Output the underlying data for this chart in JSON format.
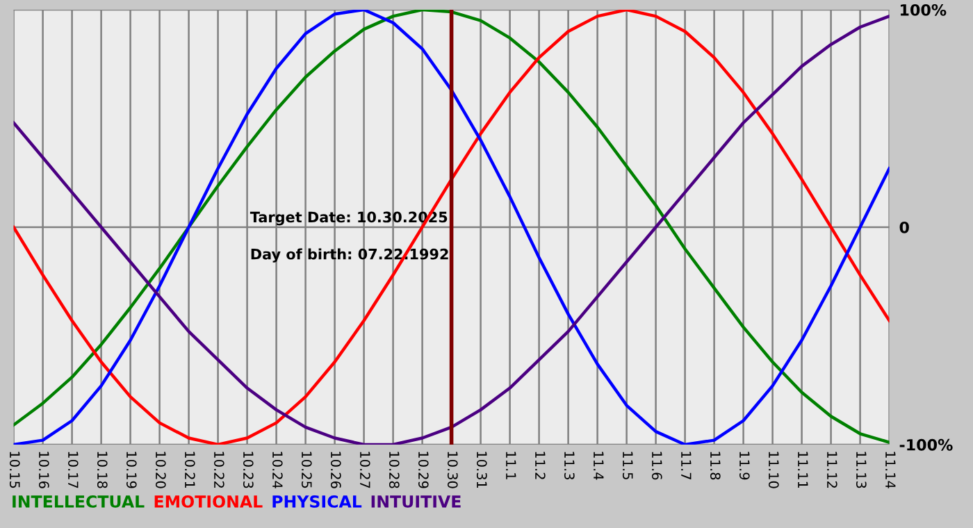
{
  "chart_data": {
    "type": "line",
    "categories": [
      "10.15",
      "10.16",
      "10.17",
      "10.18",
      "10.19",
      "10.20",
      "10.21",
      "10.22",
      "10.23",
      "10.24",
      "10.25",
      "10.26",
      "10.27",
      "10.28",
      "10.29",
      "10.30",
      "10.31",
      "11.1",
      "11.2",
      "11.3",
      "11.4",
      "11.5",
      "11.6",
      "11.7",
      "11.8",
      "11.9",
      "11.10",
      "11.11",
      "11.12",
      "11.13",
      "11.14"
    ],
    "series": [
      {
        "name": "INTELLECTUAL",
        "color": "#008000",
        "values": [
          -91,
          -81,
          -69,
          -54,
          -37,
          -19,
          0,
          19,
          37,
          54,
          69,
          81,
          91,
          97,
          100,
          99,
          95,
          87,
          76,
          62,
          46,
          28,
          10,
          -10,
          -28,
          -46,
          -62,
          -76,
          -87,
          -95,
          -99
        ]
      },
      {
        "name": "EMOTIONAL",
        "color": "#ff0000",
        "values": [
          0,
          -22,
          -43,
          -62,
          -78,
          -90,
          -97,
          -100,
          -97,
          -90,
          -78,
          -62,
          -43,
          -22,
          0,
          22,
          43,
          62,
          78,
          90,
          97,
          100,
          97,
          90,
          78,
          62,
          43,
          22,
          0,
          -22,
          -43
        ]
      },
      {
        "name": "PHYSICAL",
        "color": "#0000ff",
        "values": [
          -100,
          -98,
          -89,
          -73,
          -52,
          -27,
          0,
          27,
          52,
          73,
          89,
          98,
          100,
          94,
          82,
          63,
          40,
          14,
          -14,
          -40,
          -63,
          -82,
          -94,
          -100,
          -98,
          -89,
          -73,
          -52,
          -27,
          0,
          27
        ]
      },
      {
        "name": "INTUITIVE",
        "color": "#4b0082",
        "values": [
          48,
          32,
          16,
          0,
          -16,
          -32,
          -48,
          -61,
          -74,
          -84,
          -92,
          -97,
          -100,
          -100,
          -97,
          -92,
          -84,
          -74,
          -61,
          -48,
          -32,
          -16,
          0,
          16,
          32,
          48,
          61,
          74,
          84,
          92,
          97
        ]
      }
    ],
    "ylim": [
      -100,
      100
    ],
    "yticks": [
      {
        "value": 100,
        "label": "100%"
      },
      0,
      {
        "value": -100,
        "label": "-100%"
      }
    ],
    "ref_lines": [
      {
        "axis": "x",
        "value": "10.30",
        "color": "#800000"
      }
    ],
    "annotations": [
      "Target Date: 10.30.2025",
      "Day of birth: 07.22.1992"
    ],
    "grid": true,
    "legend": "bottom",
    "marker": "none",
    "line_style": "solid"
  }
}
